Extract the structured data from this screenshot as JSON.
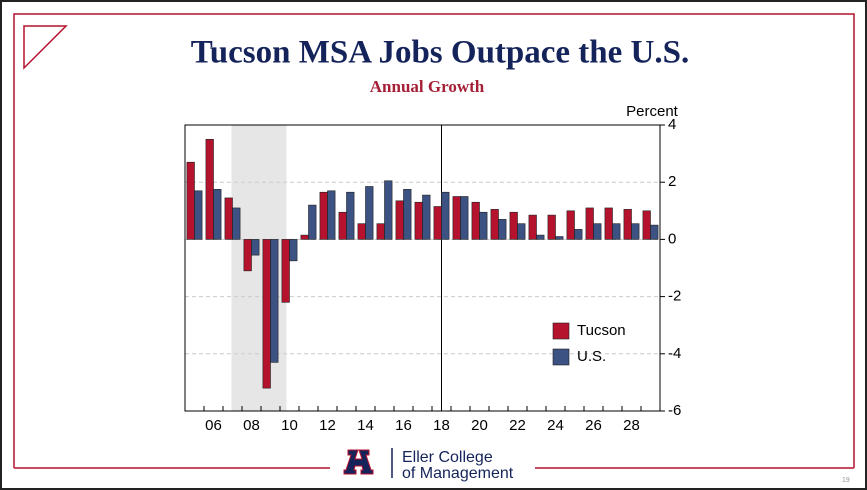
{
  "chart_data": {
    "type": "bar",
    "title": "Tucson MSA Jobs Outpace the U.S.",
    "subtitle": "Annual Growth",
    "y_axis_label": "Percent",
    "categories": [
      null,
      "06",
      null,
      "08",
      null,
      "10",
      null,
      "12",
      null,
      "14",
      null,
      "16",
      null,
      "18",
      null,
      "20",
      null,
      "22",
      null,
      "24",
      null,
      "26",
      null,
      "28",
      null
    ],
    "series": [
      {
        "name": "Tucson",
        "color": "#b5122d",
        "values": [
          2.7,
          3.5,
          1.45,
          -1.1,
          -5.2,
          -2.2,
          0.15,
          1.65,
          0.95,
          0.55,
          0.55,
          1.35,
          1.3,
          1.15,
          1.5,
          1.3,
          1.05,
          0.95,
          0.85,
          0.85,
          1.0,
          1.1,
          1.1,
          1.05,
          1.0
        ]
      },
      {
        "name": "U.S.",
        "color": "#3b5283",
        "values": [
          1.7,
          1.75,
          1.1,
          -0.55,
          -4.3,
          -0.75,
          1.2,
          1.7,
          1.65,
          1.85,
          2.05,
          1.75,
          1.55,
          1.65,
          1.5,
          0.95,
          0.7,
          0.55,
          0.15,
          0.1,
          0.35,
          0.55,
          0.55,
          0.55,
          0.5
        ]
      }
    ],
    "ylim": [
      -6,
      4
    ],
    "yticks": [
      4,
      2,
      0,
      -2,
      -4,
      -6
    ],
    "grid": true,
    "legend": "lower right"
  },
  "footer": {
    "line1": "Eller College",
    "line2": "of Management",
    "page_number": "19"
  }
}
